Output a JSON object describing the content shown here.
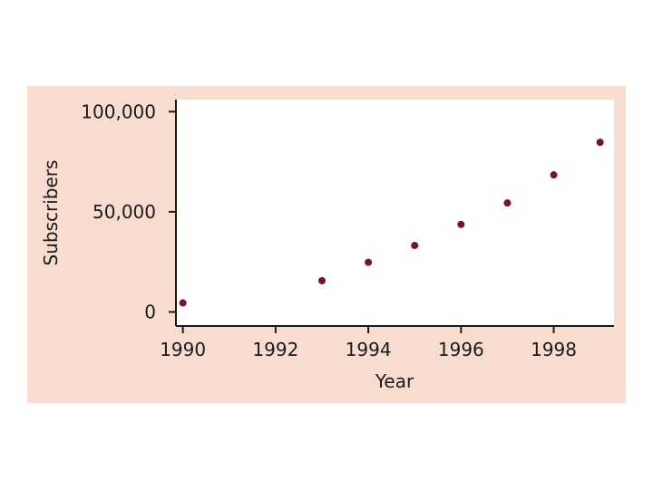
{
  "colors": {
    "panel_background": "#f8dccf",
    "plot_background": "#ffffff",
    "axis": "#1a1a1a",
    "marker": "#7a1030"
  },
  "chart_data": {
    "type": "scatter",
    "title": "",
    "xlabel": "Year",
    "ylabel": "Subscribers",
    "xlim": [
      1989.85,
      1999.3
    ],
    "ylim": [
      -7000,
      106000
    ],
    "x_ticks": [
      1990,
      1992,
      1994,
      1996,
      1998
    ],
    "x_tick_labels": [
      "1990",
      "1992",
      "1994",
      "1996",
      "1998"
    ],
    "y_ticks": [
      0,
      50000,
      100000
    ],
    "y_tick_labels": [
      "0",
      "50,000",
      "100,000"
    ],
    "grid": false,
    "legend": "none",
    "series": [
      {
        "x": [
          1990,
          1993,
          1994,
          1995,
          1996,
          1997,
          1998,
          1999
        ],
        "y": [
          4500,
          15600,
          24800,
          33200,
          43700,
          54400,
          68400,
          84700
        ]
      }
    ]
  }
}
